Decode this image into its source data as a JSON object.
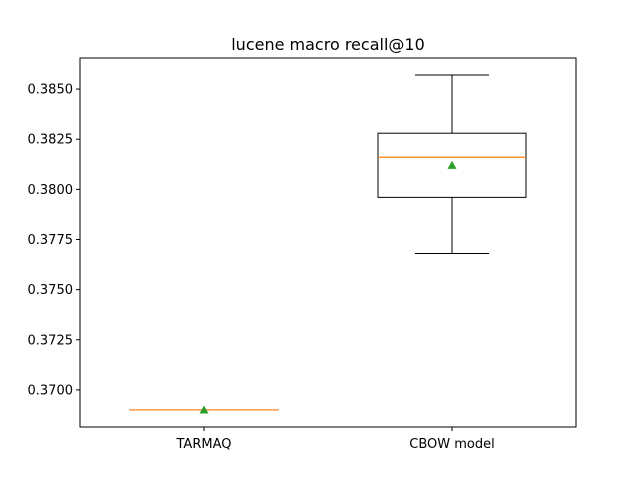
{
  "chart_data": {
    "type": "boxplot",
    "title": "lucene macro recall@10",
    "xlabel": "",
    "ylabel": "",
    "ylim": [
      0.36815,
      0.38655
    ],
    "yticks": [
      0.37,
      0.3725,
      0.375,
      0.3775,
      0.38,
      0.3825,
      0.385
    ],
    "ytick_labels": [
      "0.3700",
      "0.3725",
      "0.3750",
      "0.3775",
      "0.3800",
      "0.3825",
      "0.3850"
    ],
    "categories": [
      "TARMAQ",
      "CBOW model"
    ],
    "boxes": [
      {
        "name": "TARMAQ",
        "whisker_low": 0.369,
        "q1": 0.369,
        "median": 0.369,
        "q3": 0.369,
        "whisker_high": 0.369,
        "mean": 0.369
      },
      {
        "name": "CBOW model",
        "whisker_low": 0.3768,
        "q1": 0.3796,
        "median": 0.3816,
        "q3": 0.3828,
        "whisker_high": 0.3857,
        "mean": 0.3812
      }
    ],
    "colors": {
      "box": "#000000",
      "median": "#ff7f0e",
      "mean": "#2ca02c"
    }
  }
}
